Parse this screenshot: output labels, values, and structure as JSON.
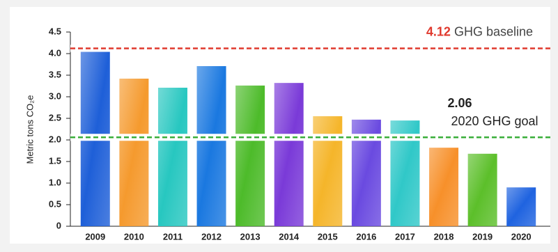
{
  "chart_data": {
    "type": "bar",
    "y_label": "Metric tons CO₂e",
    "categories": [
      "2009",
      "2010",
      "2011",
      "2012",
      "2013",
      "2014",
      "2015",
      "2016",
      "2017",
      "2018",
      "2019",
      "2020"
    ],
    "values": [
      4.12,
      3.42,
      3.21,
      3.71,
      3.26,
      3.32,
      2.55,
      2.47,
      2.45,
      1.82,
      1.68,
      0.9
    ],
    "colors": [
      "#1e5fd8",
      "#f59a2e",
      "#27c7c0",
      "#1a78e0",
      "#4dbb2a",
      "#7a3ad8",
      "#f5b52a",
      "#6a4ae0",
      "#30c8c8",
      "#f7902a",
      "#5cbf2a",
      "#1f63e0"
    ],
    "ylim": [
      0,
      4.5
    ],
    "yticks": [
      0,
      0.5,
      {
        "value": 1,
        "label": "1.0"
      },
      1.5,
      {
        "value": 2,
        "label": "2.0"
      },
      2.5,
      {
        "value": 3,
        "label": "3.0"
      },
      3.5,
      {
        "value": 4,
        "label": "4.0"
      },
      4.5
    ],
    "reference_lines": [
      {
        "value": 4.12,
        "label": "GHG baseline",
        "color": "#e0392d"
      },
      {
        "value": 2.06,
        "label": "2020 GHG goal",
        "color": "#3aae3a"
      }
    ]
  }
}
